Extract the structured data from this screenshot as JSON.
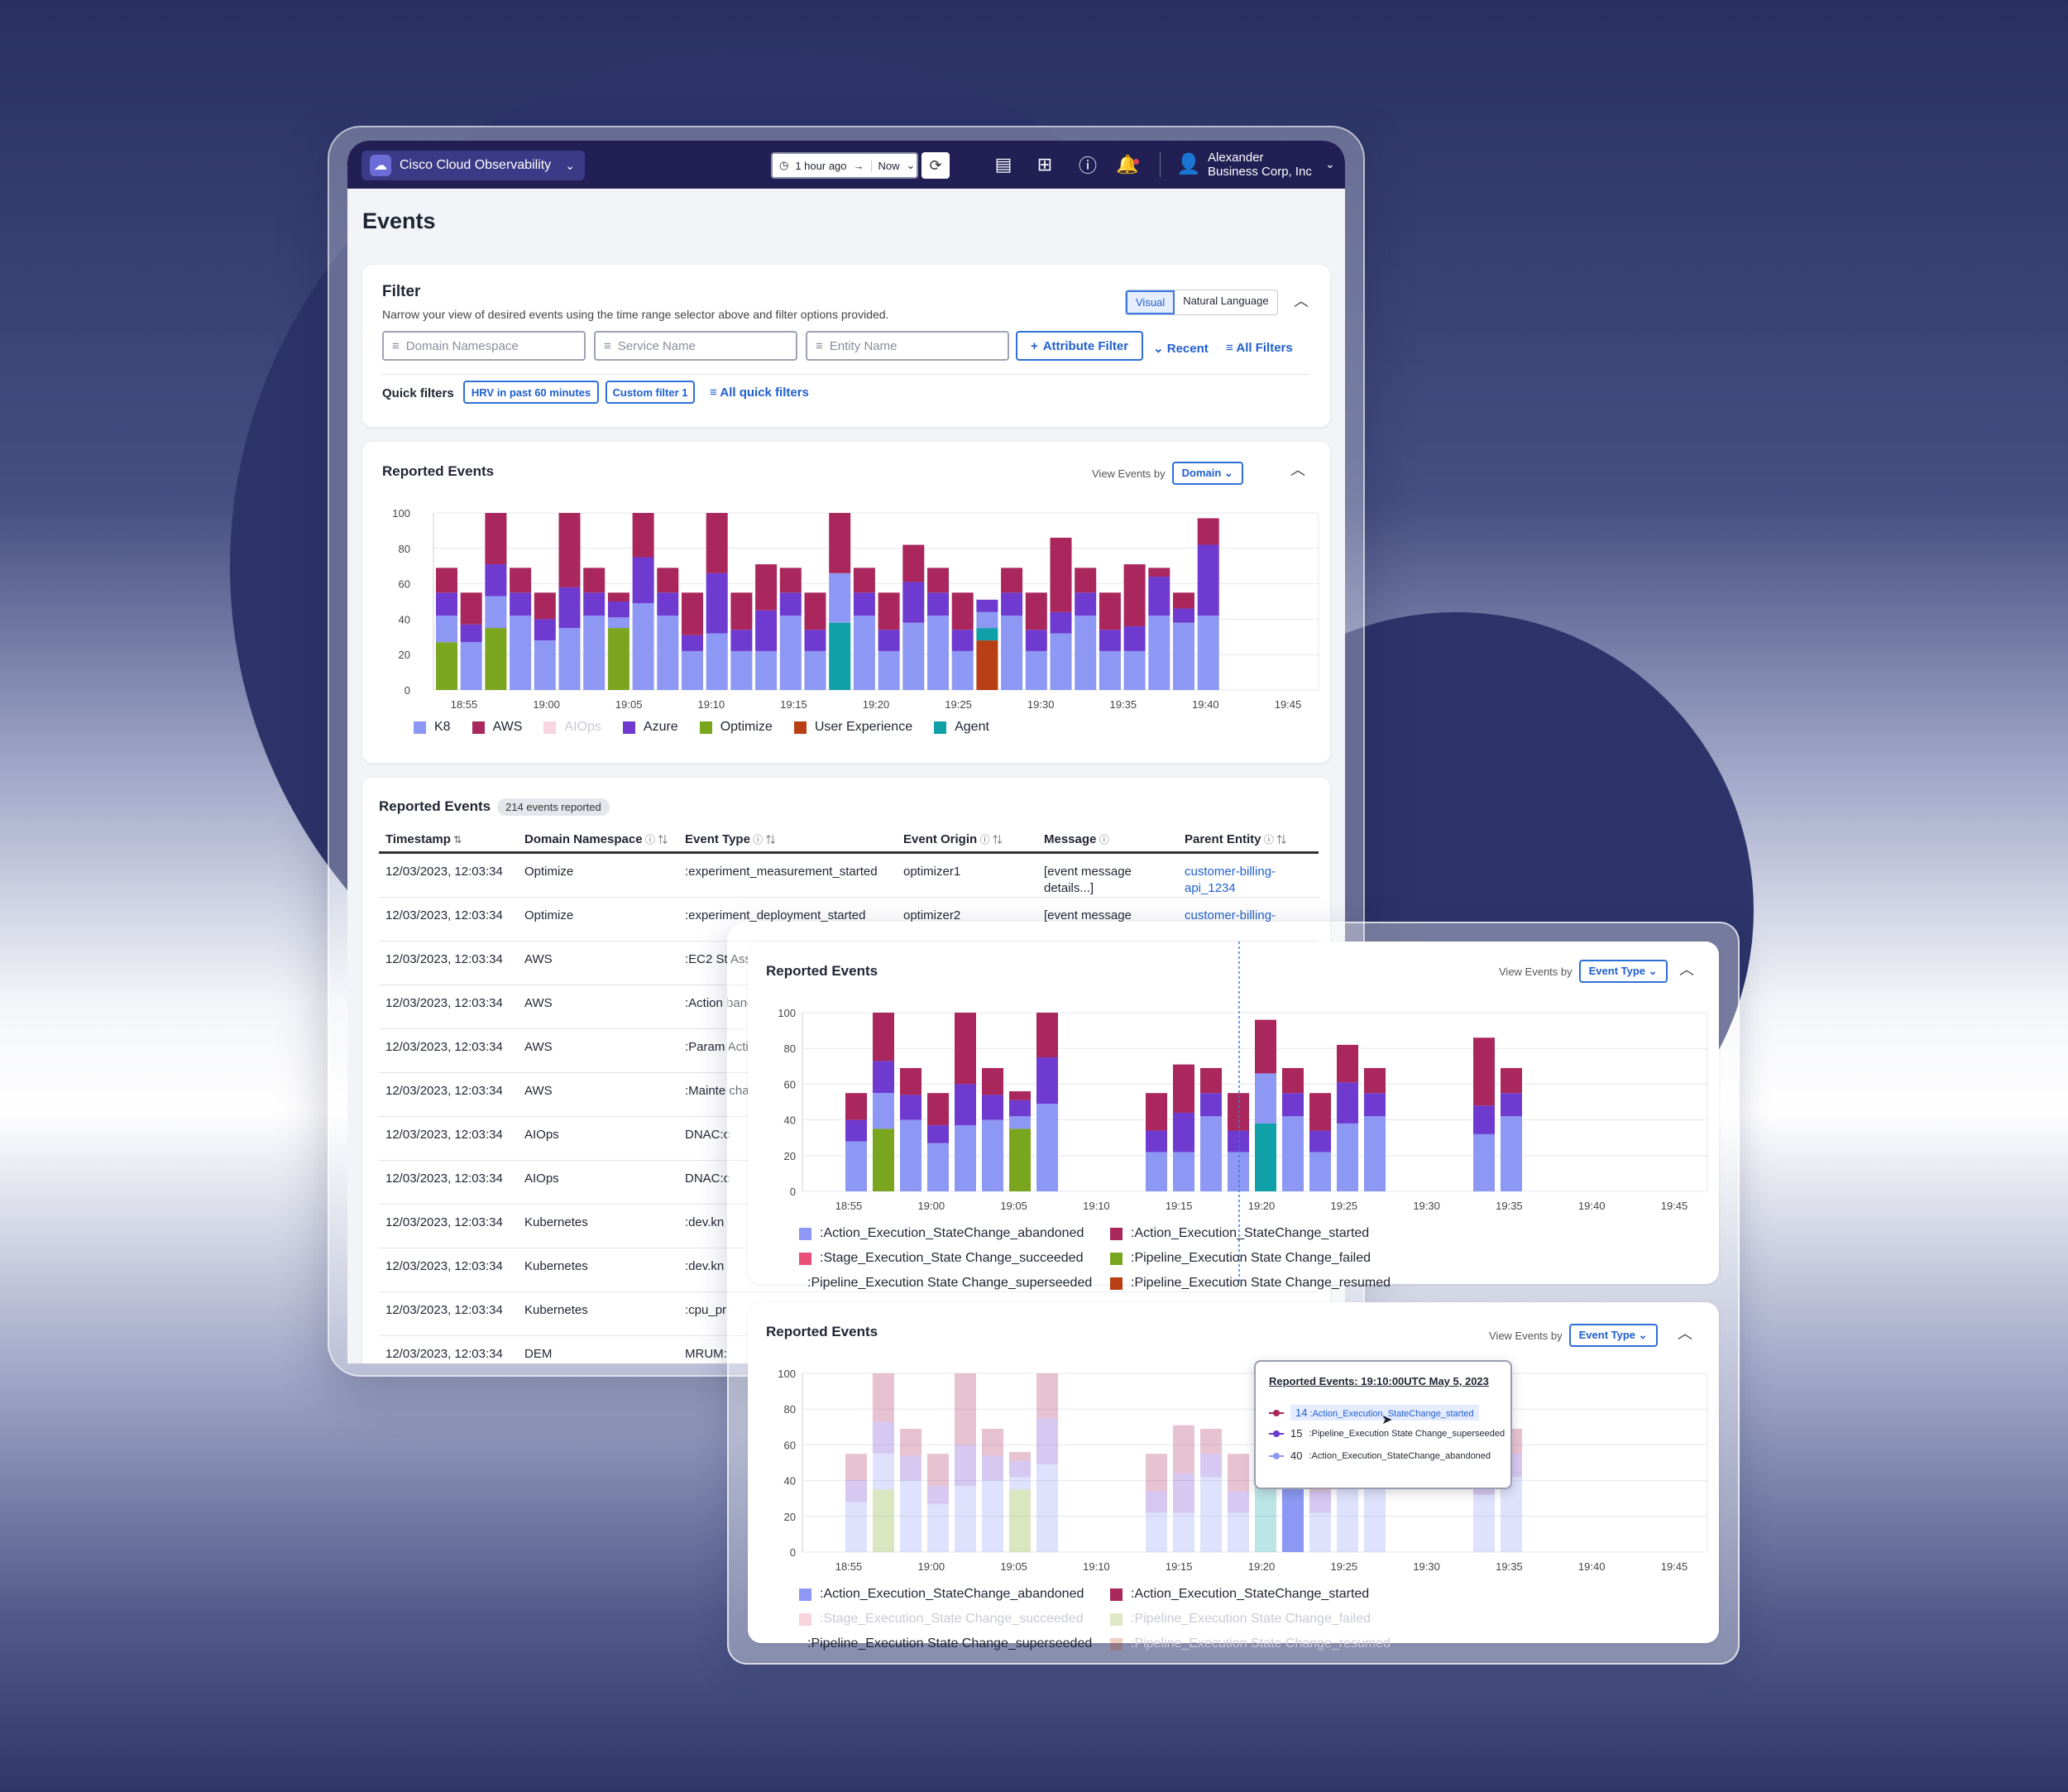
{
  "app": {
    "brand": "Cisco Cloud Observability",
    "time_from": "1 hour ago",
    "time_to": "Now",
    "user_name": "Alexander",
    "user_org": "Business Corp, Inc"
  },
  "page_title": "Events",
  "filter": {
    "title": "Filter",
    "subtitle": "Narrow your view of desired events using the time range selector above and filter options provided.",
    "mode_visual": "Visual",
    "mode_nl": "Natural Language",
    "domain_placeholder": "Domain Namespace",
    "service_placeholder": "Service Name",
    "entity_placeholder": "Entity Name",
    "attribute_filter": "Attribute Filter",
    "recent": "Recent",
    "all_filters": "All Filters",
    "quick_label": "Quick filters",
    "quick_1": "HRV in past 60 minutes",
    "quick_2": "Custom filter 1",
    "all_quick": "All quick filters"
  },
  "chart_card": {
    "title": "Reported Events",
    "view_by_label": "View Events by",
    "view_by_value": "Domain"
  },
  "colors": {
    "K8": "#8c98f3",
    "AWS": "#a9275c",
    "AIOps": "#f4b9cc",
    "Azure": "#6e3ad0",
    "Optimize": "#7aa51e",
    "UserExperience": "#b83f14",
    "Agent": "#10a0a8",
    "StageSucceeded": "#e8507a"
  },
  "chart_data": [
    {
      "type": "bar",
      "stacked": true,
      "title": "Reported Events",
      "ylim": [
        0,
        100
      ],
      "yticks": [
        0,
        20,
        40,
        60,
        80,
        100
      ],
      "xtick_labels": [
        "18:55",
        "19:00",
        "19:05",
        "19:10",
        "19:15",
        "19:20",
        "19:25",
        "19:30",
        "19:35",
        "19:40",
        "19:45"
      ],
      "legend": [
        "K8",
        "AWS",
        "AIOps",
        "Azure",
        "Optimize",
        "User Experience",
        "Agent"
      ],
      "legend_dimmed": [
        "AIOps"
      ],
      "bars": [
        [
          {
            "s": "Optimize",
            "v": 27
          },
          {
            "s": "K8",
            "v": 15
          },
          {
            "s": "Azure",
            "v": 13
          },
          {
            "s": "AWS",
            "v": 14
          }
        ],
        [
          {
            "s": "K8",
            "v": 27
          },
          {
            "s": "Azure",
            "v": 10
          },
          {
            "s": "AWS",
            "v": 18
          }
        ],
        [
          {
            "s": "Optimize",
            "v": 35
          },
          {
            "s": "K8",
            "v": 18
          },
          {
            "s": "Azure",
            "v": 18
          },
          {
            "s": "AWS",
            "v": 29
          }
        ],
        [
          {
            "s": "K8",
            "v": 42
          },
          {
            "s": "Azure",
            "v": 13
          },
          {
            "s": "AWS",
            "v": 14
          }
        ],
        [
          {
            "s": "K8",
            "v": 28
          },
          {
            "s": "Azure",
            "v": 12
          },
          {
            "s": "AWS",
            "v": 15
          }
        ],
        [
          {
            "s": "K8",
            "v": 35
          },
          {
            "s": "Azure",
            "v": 23
          },
          {
            "s": "AWS",
            "v": 42
          }
        ],
        [
          {
            "s": "K8",
            "v": 42
          },
          {
            "s": "Azure",
            "v": 13
          },
          {
            "s": "AWS",
            "v": 14
          }
        ],
        [
          {
            "s": "Optimize",
            "v": 35
          },
          {
            "s": "K8",
            "v": 6
          },
          {
            "s": "Azure",
            "v": 9
          },
          {
            "s": "AWS",
            "v": 5
          }
        ],
        [
          {
            "s": "K8",
            "v": 49
          },
          {
            "s": "Azure",
            "v": 26
          },
          {
            "s": "AWS",
            "v": 25
          }
        ],
        [
          {
            "s": "K8",
            "v": 42
          },
          {
            "s": "Azure",
            "v": 13
          },
          {
            "s": "AWS",
            "v": 14
          }
        ],
        [
          {
            "s": "K8",
            "v": 22
          },
          {
            "s": "Azure",
            "v": 9
          },
          {
            "s": "AWS",
            "v": 24
          }
        ],
        [
          {
            "s": "K8",
            "v": 32
          },
          {
            "s": "Azure",
            "v": 34
          },
          {
            "s": "AWS",
            "v": 34
          }
        ],
        [
          {
            "s": "K8",
            "v": 22
          },
          {
            "s": "Azure",
            "v": 12
          },
          {
            "s": "AWS",
            "v": 21
          }
        ],
        [
          {
            "s": "K8",
            "v": 22
          },
          {
            "s": "Azure",
            "v": 23
          },
          {
            "s": "AWS",
            "v": 26
          }
        ],
        [
          {
            "s": "K8",
            "v": 42
          },
          {
            "s": "Azure",
            "v": 13
          },
          {
            "s": "AWS",
            "v": 14
          }
        ],
        [
          {
            "s": "K8",
            "v": 22
          },
          {
            "s": "Azure",
            "v": 12
          },
          {
            "s": "AWS",
            "v": 21
          }
        ],
        [
          {
            "s": "Agent",
            "v": 38
          },
          {
            "s": "K8",
            "v": 28
          },
          {
            "s": "AWS",
            "v": 34
          }
        ],
        [
          {
            "s": "K8",
            "v": 42
          },
          {
            "s": "Azure",
            "v": 13
          },
          {
            "s": "AWS",
            "v": 14
          }
        ],
        [
          {
            "s": "K8",
            "v": 22
          },
          {
            "s": "Azure",
            "v": 12
          },
          {
            "s": "AWS",
            "v": 21
          }
        ],
        [
          {
            "s": "K8",
            "v": 38
          },
          {
            "s": "Azure",
            "v": 23
          },
          {
            "s": "AWS",
            "v": 21
          }
        ],
        [
          {
            "s": "K8",
            "v": 42
          },
          {
            "s": "Azure",
            "v": 13
          },
          {
            "s": "AWS",
            "v": 14
          }
        ],
        [
          {
            "s": "K8",
            "v": 22
          },
          {
            "s": "Azure",
            "v": 12
          },
          {
            "s": "AWS",
            "v": 21
          }
        ],
        [
          {
            "s": "UserExperience",
            "v": 28
          },
          {
            "s": "Agent",
            "v": 7
          },
          {
            "s": "K8",
            "v": 9
          },
          {
            "s": "Azure",
            "v": 7
          }
        ],
        [
          {
            "s": "K8",
            "v": 42
          },
          {
            "s": "Azure",
            "v": 13
          },
          {
            "s": "AWS",
            "v": 14
          }
        ],
        [
          {
            "s": "K8",
            "v": 22
          },
          {
            "s": "Azure",
            "v": 12
          },
          {
            "s": "AWS",
            "v": 21
          }
        ],
        [
          {
            "s": "K8",
            "v": 32
          },
          {
            "s": "Azure",
            "v": 12
          },
          {
            "s": "AWS",
            "v": 42
          }
        ],
        [
          {
            "s": "K8",
            "v": 42
          },
          {
            "s": "Azure",
            "v": 13
          },
          {
            "s": "AWS",
            "v": 14
          }
        ],
        [
          {
            "s": "K8",
            "v": 22
          },
          {
            "s": "Azure",
            "v": 12
          },
          {
            "s": "AWS",
            "v": 21
          }
        ],
        [
          {
            "s": "K8",
            "v": 22
          },
          {
            "s": "Azure",
            "v": 14
          },
          {
            "s": "AWS",
            "v": 35
          }
        ],
        [
          {
            "s": "K8",
            "v": 42
          },
          {
            "s": "Azure",
            "v": 22
          },
          {
            "s": "AWS",
            "v": 5
          }
        ],
        [
          {
            "s": "K8",
            "v": 38
          },
          {
            "s": "Azure",
            "v": 8
          },
          {
            "s": "AWS",
            "v": 9
          }
        ],
        [
          {
            "s": "K8",
            "v": 42
          },
          {
            "s": "Azure",
            "v": 40
          },
          {
            "s": "AWS",
            "v": 15
          }
        ]
      ]
    },
    {
      "type": "bar",
      "stacked": true,
      "title": "Reported Events",
      "ylim": [
        0,
        100
      ],
      "yticks": [
        0,
        20,
        40,
        60,
        80,
        100
      ],
      "xtick_labels": [
        "18:55",
        "19:00",
        "19:05",
        "19:10",
        "19:15",
        "19:20",
        "19:25",
        "19:30",
        "19:35",
        "19:40",
        "19:45"
      ],
      "legend": [
        ":Action_Execution_StateChange_abandoned",
        ":Action_Execution_StateChange_started",
        ":Stage_Execution_State Change_succeeded",
        ":Pipeline_Execution State Change_failed",
        ":Pipeline_Execution State Change_superseeded",
        ":Pipeline_Execution State Change_resumed"
      ],
      "bars": [
        {
          "i": 1,
          "st": [
            {
              "s": "K8",
              "v": 28
            },
            {
              "s": "Azure",
              "v": 12
            },
            {
              "s": "AWS",
              "v": 15
            }
          ]
        },
        {
          "i": 2,
          "st": [
            {
              "s": "Optimize",
              "v": 35
            },
            {
              "s": "K8",
              "v": 20
            },
            {
              "s": "Azure",
              "v": 18
            },
            {
              "s": "AWS",
              "v": 27
            }
          ]
        },
        {
          "i": 3,
          "st": [
            {
              "s": "K8",
              "v": 40
            },
            {
              "s": "Azure",
              "v": 14
            },
            {
              "s": "AWS",
              "v": 15
            }
          ]
        },
        {
          "i": 4,
          "st": [
            {
              "s": "K8",
              "v": 27
            },
            {
              "s": "Azure",
              "v": 10
            },
            {
              "s": "AWS",
              "v": 18
            }
          ]
        },
        {
          "i": 5,
          "st": [
            {
              "s": "K8",
              "v": 37
            },
            {
              "s": "Azure",
              "v": 23
            },
            {
              "s": "AWS",
              "v": 40
            }
          ]
        },
        {
          "i": 6,
          "st": [
            {
              "s": "K8",
              "v": 40
            },
            {
              "s": "Azure",
              "v": 14
            },
            {
              "s": "AWS",
              "v": 15
            }
          ]
        },
        {
          "i": 7,
          "st": [
            {
              "s": "Optimize",
              "v": 35
            },
            {
              "s": "K8",
              "v": 7
            },
            {
              "s": "Azure",
              "v": 9
            },
            {
              "s": "AWS",
              "v": 5
            }
          ]
        },
        {
          "i": 8,
          "st": [
            {
              "s": "K8",
              "v": 49
            },
            {
              "s": "Azure",
              "v": 26
            },
            {
              "s": "AWS",
              "v": 25
            }
          ]
        },
        {
          "i": 12,
          "st": [
            {
              "s": "K8",
              "v": 22
            },
            {
              "s": "Azure",
              "v": 12
            },
            {
              "s": "AWS",
              "v": 21
            }
          ]
        },
        {
          "i": 13,
          "st": [
            {
              "s": "K8",
              "v": 22
            },
            {
              "s": "Azure",
              "v": 22
            },
            {
              "s": "AWS",
              "v": 27
            }
          ]
        },
        {
          "i": 14,
          "st": [
            {
              "s": "K8",
              "v": 42
            },
            {
              "s": "Azure",
              "v": 13
            },
            {
              "s": "AWS",
              "v": 14
            }
          ]
        },
        {
          "i": 15,
          "st": [
            {
              "s": "K8",
              "v": 22
            },
            {
              "s": "Azure",
              "v": 12
            },
            {
              "s": "AWS",
              "v": 21
            }
          ]
        },
        {
          "i": 16,
          "st": [
            {
              "s": "Agent",
              "v": 38
            },
            {
              "s": "K8",
              "v": 28
            },
            {
              "s": "AWS",
              "v": 30
            }
          ]
        },
        {
          "i": 17,
          "st": [
            {
              "s": "K8",
              "v": 42
            },
            {
              "s": "Azure",
              "v": 13
            },
            {
              "s": "AWS",
              "v": 14
            }
          ]
        },
        {
          "i": 18,
          "st": [
            {
              "s": "K8",
              "v": 22
            },
            {
              "s": "Azure",
              "v": 12
            },
            {
              "s": "AWS",
              "v": 21
            }
          ]
        },
        {
          "i": 19,
          "st": [
            {
              "s": "K8",
              "v": 38
            },
            {
              "s": "Azure",
              "v": 23
            },
            {
              "s": "AWS",
              "v": 21
            }
          ]
        },
        {
          "i": 20,
          "st": [
            {
              "s": "K8",
              "v": 42
            },
            {
              "s": "Azure",
              "v": 13
            },
            {
              "s": "AWS",
              "v": 14
            }
          ]
        },
        {
          "i": 24,
          "st": [
            {
              "s": "K8",
              "v": 32
            },
            {
              "s": "Azure",
              "v": 16
            },
            {
              "s": "AWS",
              "v": 38
            }
          ]
        },
        {
          "i": 25,
          "st": [
            {
              "s": "K8",
              "v": 42
            },
            {
              "s": "Azure",
              "v": 13
            },
            {
              "s": "AWS",
              "v": 14
            }
          ]
        }
      ]
    },
    {
      "type": "bar",
      "stacked": true,
      "title": "Reported Events",
      "ylim": [
        0,
        100
      ],
      "yticks": [
        0,
        20,
        40,
        60,
        80,
        100
      ],
      "xtick_labels": [
        "18:55",
        "19:00",
        "19:05",
        "19:10",
        "19:15",
        "19:20",
        "19:25",
        "19:30",
        "19:35",
        "19:40",
        "19:45"
      ],
      "highlighted_bar": 17,
      "legend_dimmed": [
        ":Stage_Execution_State Change_succeeded",
        ":Pipeline_Execution State Change_failed",
        ":Pipeline_Execution State Change_resumed"
      ]
    }
  ],
  "table": {
    "title": "Reported Events",
    "badge": "214 events reported",
    "headers": [
      "Timestamp",
      "Domain Namespace",
      "Event Type",
      "Event Origin",
      "Message",
      "Parent Entity"
    ],
    "rows": [
      {
        "ts": "12/03/2023, 12:03:34",
        "dn": "Optimize",
        "et": ":experiment_measurement_started",
        "eo": "optimizer1",
        "msg": "[event message details...]",
        "pe": "customer-billing-api_1234"
      },
      {
        "ts": "12/03/2023, 12:03:34",
        "dn": "Optimize",
        "et": ":experiment_deployment_started",
        "eo": "optimizer2",
        "msg": "[event message",
        "pe": "customer-billing-"
      },
      {
        "ts": "12/03/2023, 12:03:34",
        "dn": "AWS",
        "et": ":EC2 St Associ"
      },
      {
        "ts": "12/03/2023, 12:03:34",
        "dn": "AWS",
        "et": ":Action bandor"
      },
      {
        "ts": "12/03/2023, 12:03:34",
        "dn": "AWS",
        "et": ":Param Action_"
      },
      {
        "ts": "12/03/2023, 12:03:34",
        "dn": "AWS",
        "et": ":Mainte change"
      },
      {
        "ts": "12/03/2023, 12:03:34",
        "dn": "AIOps",
        "et": "DNAC:c"
      },
      {
        "ts": "12/03/2023, 12:03:34",
        "dn": "AIOps",
        "et": "DNAC:c"
      },
      {
        "ts": "12/03/2023, 12:03:34",
        "dn": "Kubernetes",
        "et": ":dev.kn"
      },
      {
        "ts": "12/03/2023, 12:03:34",
        "dn": "Kubernetes",
        "et": ":dev.kn"
      },
      {
        "ts": "12/03/2023, 12:03:34",
        "dn": "Kubernetes",
        "et": ":cpu_pr"
      },
      {
        "ts": "12/03/2023, 12:03:34",
        "dn": "DEM",
        "et": "MRUM:"
      }
    ]
  },
  "overlay1": {
    "title": "Reported Events",
    "view_by_label": "View Events by",
    "view_by_value": "Event Type"
  },
  "overlay2": {
    "title": "Reported Events",
    "view_by_label": "View Events by",
    "view_by_value": "Event Type"
  },
  "tooltip": {
    "header": "Reported Events: 19:10:00UTC  May 5, 2023",
    "rows": [
      {
        "n": "14",
        "label": ":Action_Execution_StateChange_started"
      },
      {
        "n": "15",
        "label": ":Pipeline_Execution State Change_superseeded"
      },
      {
        "n": "40",
        "label": ":Action_Execution_StateChange_abandoned"
      }
    ]
  }
}
